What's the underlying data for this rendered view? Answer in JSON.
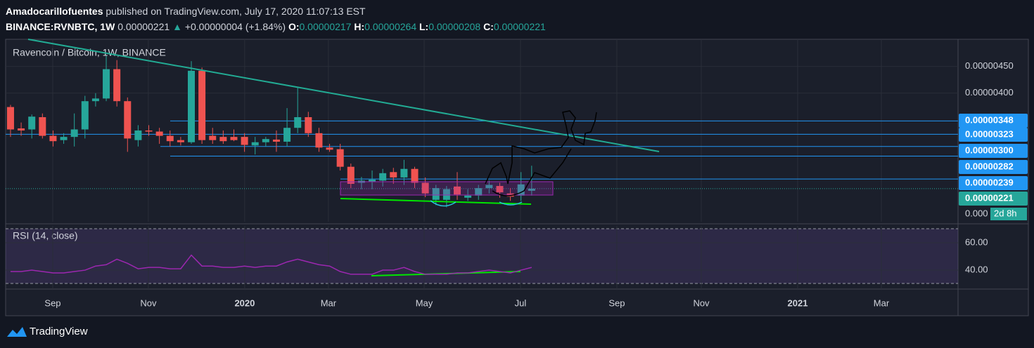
{
  "header": {
    "author": "Amadocarillofuentes",
    "published": "published on TradingView.com, July 17, 2020 11:07:13 EST",
    "symbol": "BINANCE:RVNBTC, 1W",
    "last": "0.00000221",
    "arrow": "▲",
    "change": "+0.00000004 (+1.84%)",
    "o_label": "O:",
    "o": "0.00000217",
    "h_label": "H:",
    "h": "0.00000264",
    "l_label": "L:",
    "l": "0.00000208",
    "c_label": "C:",
    "c": "0.00000221"
  },
  "chart_data": {
    "type": "candlestick",
    "title": "Ravencoin / Bitcoin, 1W, BINANCE",
    "open": [
      3.74e-06,
      3.34e-06,
      3.32e-06,
      3.55e-06,
      3.2e-06,
      3.12e-06,
      3.18e-06,
      3.32e-06,
      3.85e-06,
      3.9e-06,
      4.45e-06,
      3.85e-06,
      3.12e-06,
      3.3e-06,
      3.28e-06,
      3.2e-06,
      3.12e-06,
      3.08e-06,
      4.42e-06,
      3.2e-06,
      3.18e-06,
      3.18e-06,
      3.18e-06,
      3.02e-06,
      3.08e-06,
      3.13e-06,
      3.09e-06,
      3.35e-06,
      3.55e-06,
      3.25e-06,
      2.98e-06,
      2.95e-06,
      2.62e-06,
      2.32e-06,
      2.34e-06,
      2.36e-06,
      2.52e-06,
      2.42e-06,
      2.58e-06,
      2.32e-06,
      2e-06,
      2e-06,
      2.25e-06,
      2.04e-06,
      2.08e-06,
      2.22e-06,
      2.26e-06,
      2.12e-06,
      2.08e-06,
      2.17e-06
    ],
    "high": [
      3.78e-06,
      3.45e-06,
      3.6e-06,
      3.62e-06,
      3.3e-06,
      3.25e-06,
      3.62e-06,
      3.95e-06,
      4e-06,
      4.7e-06,
      4.62e-06,
      3.92e-06,
      3.4e-06,
      3.4e-06,
      3.35e-06,
      3.3e-06,
      3.18e-06,
      4.6e-06,
      4.48e-06,
      3.35e-06,
      3.3e-06,
      3.32e-06,
      3.25e-06,
      3.18e-06,
      3.18e-06,
      3.3e-06,
      3.72e-06,
      4.1e-06,
      3.65e-06,
      3.35e-06,
      3.05e-06,
      3.05e-06,
      2.68e-06,
      2.43e-06,
      2.55e-06,
      2.58e-06,
      2.6e-06,
      2.75e-06,
      2.62e-06,
      2.42e-06,
      2.28e-06,
      2.26e-06,
      2.52e-06,
      2.2e-06,
      2.28e-06,
      2.36e-06,
      2.32e-06,
      2.22e-06,
      2.52e-06,
      2.64e-06
    ],
    "low": [
      3.18e-06,
      3.2e-06,
      3.15e-06,
      3.15e-06,
      3e-06,
      3.05e-06,
      3e-06,
      3.15e-06,
      3.75e-06,
      3.85e-06,
      3.75e-06,
      2.9e-06,
      3e-06,
      3.2e-06,
      3.05e-06,
      3e-06,
      3.02e-06,
      3.05e-06,
      3.05e-06,
      3.05e-06,
      3.05e-06,
      3.1e-06,
      2.9e-06,
      2.85e-06,
      3e-06,
      2.9e-06,
      3e-06,
      3.25e-06,
      3.18e-06,
      2.9e-06,
      2.9e-06,
      2.55e-06,
      2.22e-06,
      2.2e-06,
      2.2e-06,
      2.25e-06,
      2.3e-06,
      2.28e-06,
      2.22e-06,
      2.05e-06,
      1.9e-06,
      1.86e-06,
      2e-06,
      1.98e-06,
      2e-06,
      2.12e-06,
      2.04e-06,
      1.98e-06,
      1.98e-06,
      2.08e-06
    ],
    "close": [
      3.32e-06,
      3.3e-06,
      3.56e-06,
      3.2e-06,
      3.1e-06,
      3.18e-06,
      3.32e-06,
      3.85e-06,
      3.9e-06,
      4.45e-06,
      3.85e-06,
      3.15e-06,
      3.3e-06,
      3.28e-06,
      3.2e-06,
      3.1e-06,
      3.08e-06,
      4.42e-06,
      3.12e-06,
      3.12e-06,
      3.1e-06,
      3.12e-06,
      3.03e-06,
      3.08e-06,
      3.14e-06,
      3.09e-06,
      3.35e-06,
      3.55e-06,
      3.25e-06,
      2.98e-06,
      2.94e-06,
      2.62e-06,
      2.3e-06,
      2.36e-06,
      2.38e-06,
      2.5e-06,
      2.42e-06,
      2.58e-06,
      2.32e-06,
      2.12e-06,
      2.22e-06,
      2.2e-06,
      2.1e-06,
      2.08e-06,
      2.22e-06,
      2.28e-06,
      2.14e-06,
      2.06e-06,
      2.29e-06,
      2.21e-06
    ],
    "up_color": "#26a69a",
    "down_color": "#ef5350",
    "ylim": [
      1.59e-06,
      5.01e-06
    ],
    "yticks": [
      {
        "value": 4.5e-06,
        "label": "0.00000450"
      },
      {
        "value": 4e-06,
        "label": "0.00000400"
      }
    ],
    "xlim": [
      -0.46,
      89.09
    ],
    "xticks": [
      {
        "value": 3.97,
        "label": "Sep"
      },
      {
        "value": 12.96,
        "label": "Nov"
      },
      {
        "value": 22.02,
        "label": "2020"
      },
      {
        "value": 29.89,
        "label": "Mar"
      },
      {
        "value": 38.89,
        "label": "May"
      },
      {
        "value": 47.95,
        "label": "Jul"
      },
      {
        "value": 57.01,
        "label": "Sep"
      },
      {
        "value": 64.95,
        "label": "Nov"
      },
      {
        "value": 74.01,
        "label": "2021"
      },
      {
        "value": 81.88,
        "label": "Mar"
      }
    ],
    "grid": true,
    "price_lines": [
      {
        "value": 3.48e-06,
        "label": "0.00000348"
      },
      {
        "value": 3.23e-06,
        "label": "0.00000323"
      },
      {
        "value": 3e-06,
        "label": "0.00000300"
      },
      {
        "value": 2.82e-06,
        "label": "0.00000282"
      },
      {
        "value": 2.39e-06,
        "label": "0.00000239"
      }
    ],
    "price_line_color": "#2196f3",
    "current_price": {
      "value": 2.21e-06,
      "label": "0.00000221"
    },
    "clipped_label": "0.000",
    "countdown": "2d 8h",
    "rsi": {
      "title": "RSI (14, close)",
      "color": "#9c27b0",
      "values": [
        39,
        39,
        40,
        39,
        38,
        38,
        39,
        40,
        43,
        44,
        48,
        45,
        41,
        42,
        42,
        41,
        41,
        51,
        43,
        43,
        42,
        42,
        43,
        42,
        43,
        43,
        46,
        48,
        46,
        44,
        43,
        39,
        37,
        37,
        37,
        40,
        40,
        42,
        39,
        37,
        37,
        37,
        38,
        38,
        39,
        40,
        39,
        38,
        40,
        42
      ],
      "ylim": [
        26.2,
        72.3
      ],
      "yticks": [
        {
          "value": 60,
          "label": "60.00"
        },
        {
          "value": 40,
          "label": "40.00"
        }
      ]
    }
  },
  "footer": {
    "brand": "TradingView"
  }
}
